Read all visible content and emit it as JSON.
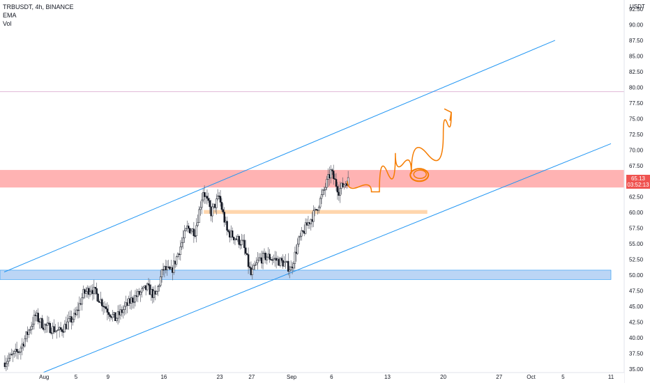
{
  "legend": {
    "symbol": "TRBUSDT, 4h, BINANCE",
    "ema_label": "EMA",
    "vol_label": "Vol"
  },
  "axis": {
    "currency": "USDT",
    "price_ticks": [
      "35.00",
      "37.50",
      "40.00",
      "42.50",
      "45.00",
      "47.50",
      "50.00",
      "52.50",
      "55.00",
      "57.50",
      "60.00",
      "62.50",
      "65.00",
      "67.50",
      "70.00",
      "72.50",
      "75.00",
      "77.50",
      "80.00",
      "82.50",
      "85.00",
      "87.50",
      "90.00",
      "92.50"
    ],
    "time_ticks": [
      "Aug",
      "5",
      "9",
      "16",
      "23",
      "27",
      "Sep",
      "6",
      "13",
      "20",
      "27",
      "Oct",
      "5",
      "11"
    ]
  },
  "last_price": {
    "price": "65.13",
    "countdown": "03:52:13"
  },
  "colors": {
    "bull": "#26a69a",
    "bear": "#ef5350",
    "wick": "#5d606b",
    "channel": "#2196f3",
    "resistance_zone": "#ff9999",
    "support_zone": "#aacbf2",
    "mid_zone": "#ffcc99",
    "drawing": "#f57c00",
    "horizontal_line": "#e1b7d6"
  },
  "chart_data": {
    "type": "candlestick",
    "symbol": "TRBUSDT",
    "timeframe": "4h",
    "exchange": "BINANCE",
    "ylim": [
      34.0,
      93.5
    ],
    "xlim": [
      "2021-07-27",
      "2021-10-11"
    ],
    "price_path": [
      [
        "2021-07-27",
        36.0
      ],
      [
        "2021-07-29",
        38.0
      ],
      [
        "2021-07-31",
        43.5
      ],
      [
        "2021-08-01",
        42.0
      ],
      [
        "2021-08-03",
        41.0
      ],
      [
        "2021-08-05",
        43.5
      ],
      [
        "2021-08-06",
        47.0
      ],
      [
        "2021-08-07",
        48.0
      ],
      [
        "2021-08-09",
        44.5
      ],
      [
        "2021-08-10",
        43.0
      ],
      [
        "2021-08-12",
        46.0
      ],
      [
        "2021-08-14",
        48.0
      ],
      [
        "2021-08-15",
        46.5
      ],
      [
        "2021-08-16",
        51.0
      ],
      [
        "2021-08-17",
        50.5
      ],
      [
        "2021-08-18",
        54.0
      ],
      [
        "2021-08-19",
        57.5
      ],
      [
        "2021-08-20",
        57.0
      ],
      [
        "2021-08-21",
        63.5
      ],
      [
        "2021-08-22",
        60.0
      ],
      [
        "2021-08-23",
        62.5
      ],
      [
        "2021-08-24",
        57.0
      ],
      [
        "2021-08-25",
        56.0
      ],
      [
        "2021-08-26",
        55.0
      ],
      [
        "2021-08-27",
        50.0
      ],
      [
        "2021-08-28",
        52.5
      ],
      [
        "2021-08-29",
        53.0
      ],
      [
        "2021-08-31",
        52.0
      ],
      [
        "2021-09-01",
        51.0
      ],
      [
        "2021-09-02",
        55.5
      ],
      [
        "2021-09-03",
        58.0
      ],
      [
        "2021-09-04",
        60.0
      ],
      [
        "2021-09-05",
        63.0
      ],
      [
        "2021-09-06",
        66.5
      ],
      [
        "2021-09-07",
        63.5
      ],
      [
        "2021-09-08",
        65.1
      ]
    ],
    "channel_upper": [
      [
        "2021-07-27",
        50.5
      ],
      [
        "2021-10-04",
        87.5
      ]
    ],
    "channel_lower": [
      [
        "2021-07-31",
        34.0
      ],
      [
        "2021-10-11",
        71.0
      ]
    ],
    "zones": [
      {
        "name": "resistance",
        "from": 64.0,
        "to": 66.8
      },
      {
        "name": "mid",
        "from": 59.8,
        "to": 60.4,
        "start": "2021-08-21",
        "end": "2021-09-18"
      },
      {
        "name": "support",
        "from": 49.3,
        "to": 50.8,
        "end": "2021-10-11"
      }
    ],
    "horizontal_line": 79.3,
    "projection": [
      [
        "2021-09-08",
        65.0
      ],
      [
        "2021-09-11",
        63.3
      ],
      [
        "2021-09-12",
        63.3
      ],
      [
        "2021-09-14",
        69.5
      ],
      [
        "2021-09-16",
        66.2
      ],
      [
        "2021-09-20",
        72.5
      ],
      [
        "2021-09-21",
        76.0
      ]
    ],
    "last_price": 65.13
  }
}
